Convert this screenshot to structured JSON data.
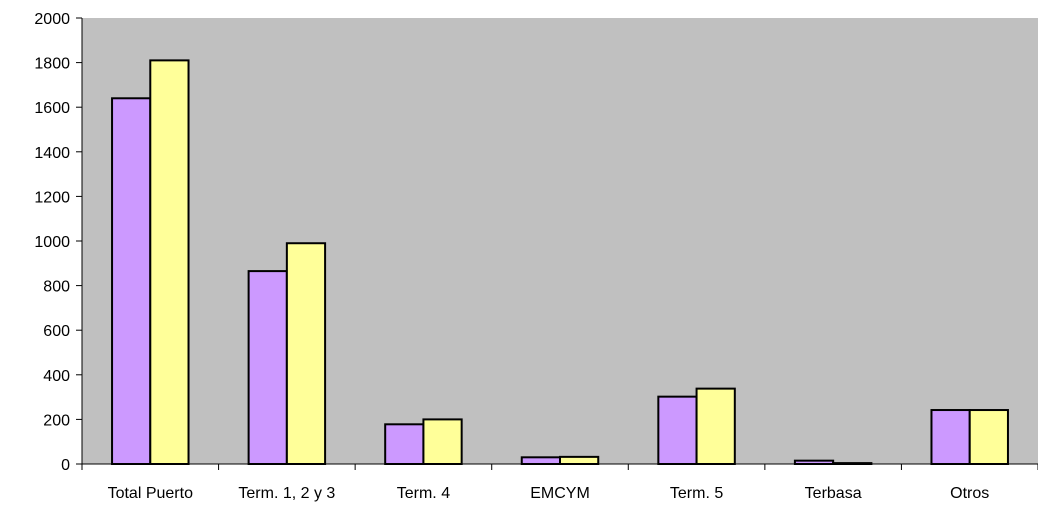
{
  "chart_data": {
    "type": "bar",
    "title": "",
    "xlabel": "",
    "ylabel": "",
    "categories": [
      "Total Puerto",
      "Term. 1, 2 y 3",
      "Term. 4",
      "EMCYM",
      "Term. 5",
      "Terbasa",
      "Otros"
    ],
    "series": [
      {
        "values": [
          1640,
          865,
          178,
          30,
          302,
          15,
          242
        ],
        "color": "#cc99ff"
      },
      {
        "values": [
          1810,
          990,
          200,
          32,
          338,
          4,
          242
        ],
        "color": "#ffff99"
      }
    ],
    "ylim": [
      0,
      2000
    ],
    "yticks": [
      0,
      200,
      400,
      600,
      800,
      1000,
      1200,
      1400,
      1600,
      1800,
      2000
    ],
    "grid": false,
    "legend": "none",
    "plot_background": "#c0c0c0",
    "bar_border": "#000000"
  }
}
